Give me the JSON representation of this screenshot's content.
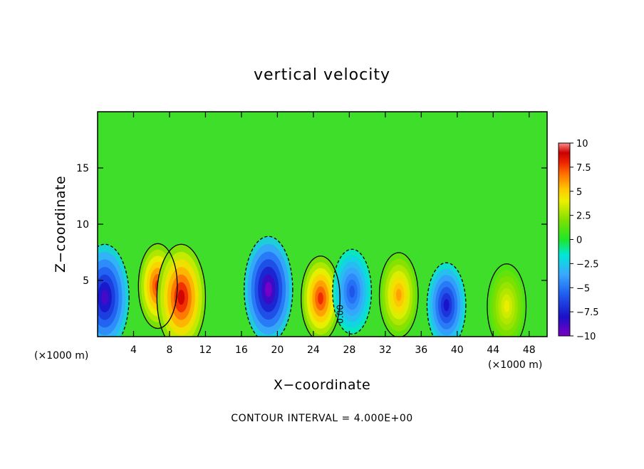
{
  "chart_data": {
    "type": "heatmap",
    "title": "vertical velocity",
    "xlabel": "X−coordinate",
    "ylabel": "Z−coordinate",
    "x_unit": "(×1000 m)",
    "y_unit": "(×1000 m)",
    "xlim": [
      0,
      50
    ],
    "ylim": [
      0,
      20
    ],
    "x_ticks": [
      "4",
      "8",
      "12",
      "16",
      "20",
      "24",
      "28",
      "32",
      "36",
      "40",
      "44",
      "48"
    ],
    "x_tick_values": [
      4,
      8,
      12,
      16,
      20,
      24,
      28,
      32,
      36,
      40,
      44,
      48
    ],
    "y_ticks": [
      "5",
      "10",
      "15"
    ],
    "y_tick_values": [
      5,
      10,
      15
    ],
    "colorbar": {
      "range": [
        -10,
        10
      ],
      "labels": [
        "10",
        "7.5",
        "5",
        "2.5",
        "0",
        "−2.5",
        "−5",
        "−7.5",
        "−10"
      ],
      "label_values": [
        10,
        7.5,
        5,
        2.5,
        0,
        -2.5,
        -5,
        -7.5,
        -10
      ]
    },
    "contour_label": "0.00",
    "footer": "CONTOUR INTERVAL = 4.000E+00",
    "features": [
      {
        "x": 0.8,
        "z": 3.5,
        "w": -9
      },
      {
        "x": 6.7,
        "z": 4.5,
        "w": 8
      },
      {
        "x": 9.3,
        "z": 3.5,
        "w": 9
      },
      {
        "x": 19.0,
        "z": 4.2,
        "w": -10
      },
      {
        "x": 24.8,
        "z": 3.4,
        "w": 8
      },
      {
        "x": 28.3,
        "z": 4.0,
        "w": -6
      },
      {
        "x": 33.5,
        "z": 3.7,
        "w": 6
      },
      {
        "x": 38.8,
        "z": 2.8,
        "w": -8
      },
      {
        "x": 45.5,
        "z": 2.7,
        "w": 4
      }
    ]
  }
}
